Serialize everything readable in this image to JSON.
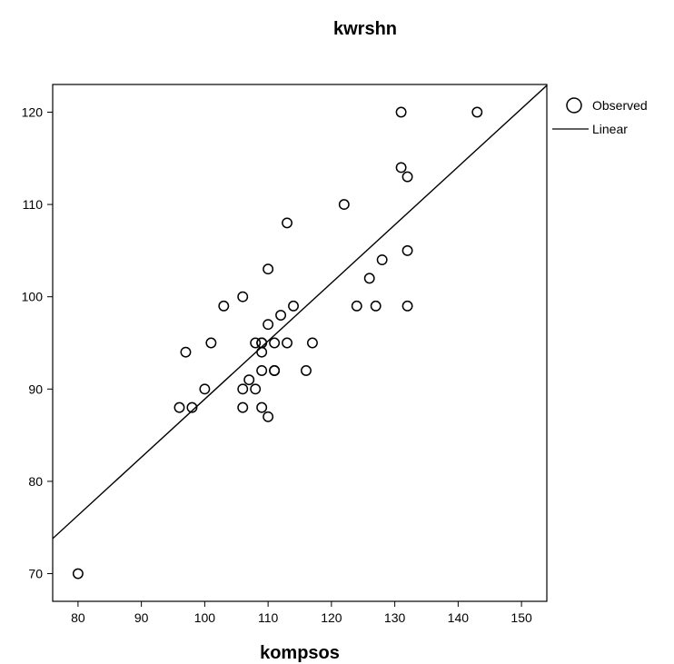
{
  "chart_data": {
    "type": "scatter",
    "title": "kwrshn",
    "xlabel": "kompsos",
    "ylabel": "",
    "xlim": [
      76,
      154
    ],
    "ylim": [
      67,
      123
    ],
    "xticks": [
      80,
      90,
      100,
      110,
      120,
      130,
      140,
      150
    ],
    "yticks": [
      70,
      80,
      90,
      100,
      110,
      120
    ],
    "xtick_labels": [
      "80",
      "90",
      "100",
      "110",
      "120",
      "130",
      "140",
      "150"
    ],
    "ytick_labels": [
      "70",
      "80",
      "90",
      "100",
      "110",
      "120"
    ],
    "grid": false,
    "legend_position": "top-right",
    "series": [
      {
        "name": "Observed",
        "type": "scatter",
        "marker": "open-circle",
        "x": [
          80,
          96,
          97,
          98,
          100,
          101,
          103,
          106,
          106,
          106,
          107,
          108,
          108,
          109,
          109,
          109,
          109,
          109,
          110,
          110,
          110,
          111,
          111,
          111,
          112,
          113,
          113,
          114,
          116,
          117,
          122,
          124,
          126,
          127,
          128,
          131,
          131,
          132,
          132,
          132,
          143
        ],
        "y": [
          70,
          88,
          94,
          88,
          90,
          95,
          99,
          100,
          90,
          88,
          91,
          95,
          90,
          95,
          94,
          92,
          88,
          95,
          103,
          97,
          87,
          95,
          92,
          92,
          98,
          95,
          108,
          99,
          92,
          95,
          110,
          99,
          102,
          99,
          104,
          120,
          114,
          113,
          105,
          99,
          120
        ]
      },
      {
        "name": "Linear",
        "type": "line",
        "x": [
          76,
          154
        ],
        "y": [
          73.8,
          122.9
        ]
      }
    ]
  }
}
